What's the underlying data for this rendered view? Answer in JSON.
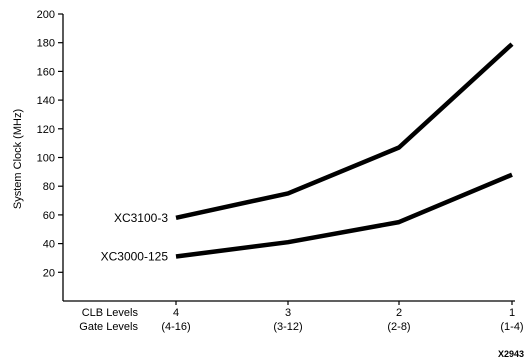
{
  "chart_data": {
    "type": "line",
    "title": "",
    "ylabel": "System Clock (MHz)",
    "ylim": [
      0,
      200
    ],
    "yticks": [
      20,
      40,
      60,
      80,
      100,
      120,
      140,
      160,
      180,
      200
    ],
    "row_labels": [
      "CLB Levels",
      "Gate Levels"
    ],
    "categories": [
      {
        "clb": "4",
        "gate": "(4-16)"
      },
      {
        "clb": "3",
        "gate": "(3-12)"
      },
      {
        "clb": "2",
        "gate": "(2-8)"
      },
      {
        "clb": "1",
        "gate": "(1-4)"
      }
    ],
    "series": [
      {
        "name": "XC3100-3",
        "values": [
          58,
          75,
          107,
          179
        ]
      },
      {
        "name": "XC3000-125",
        "values": [
          31,
          41,
          55,
          88
        ]
      }
    ],
    "line_color": "#000000",
    "figure_code": "X2943"
  }
}
